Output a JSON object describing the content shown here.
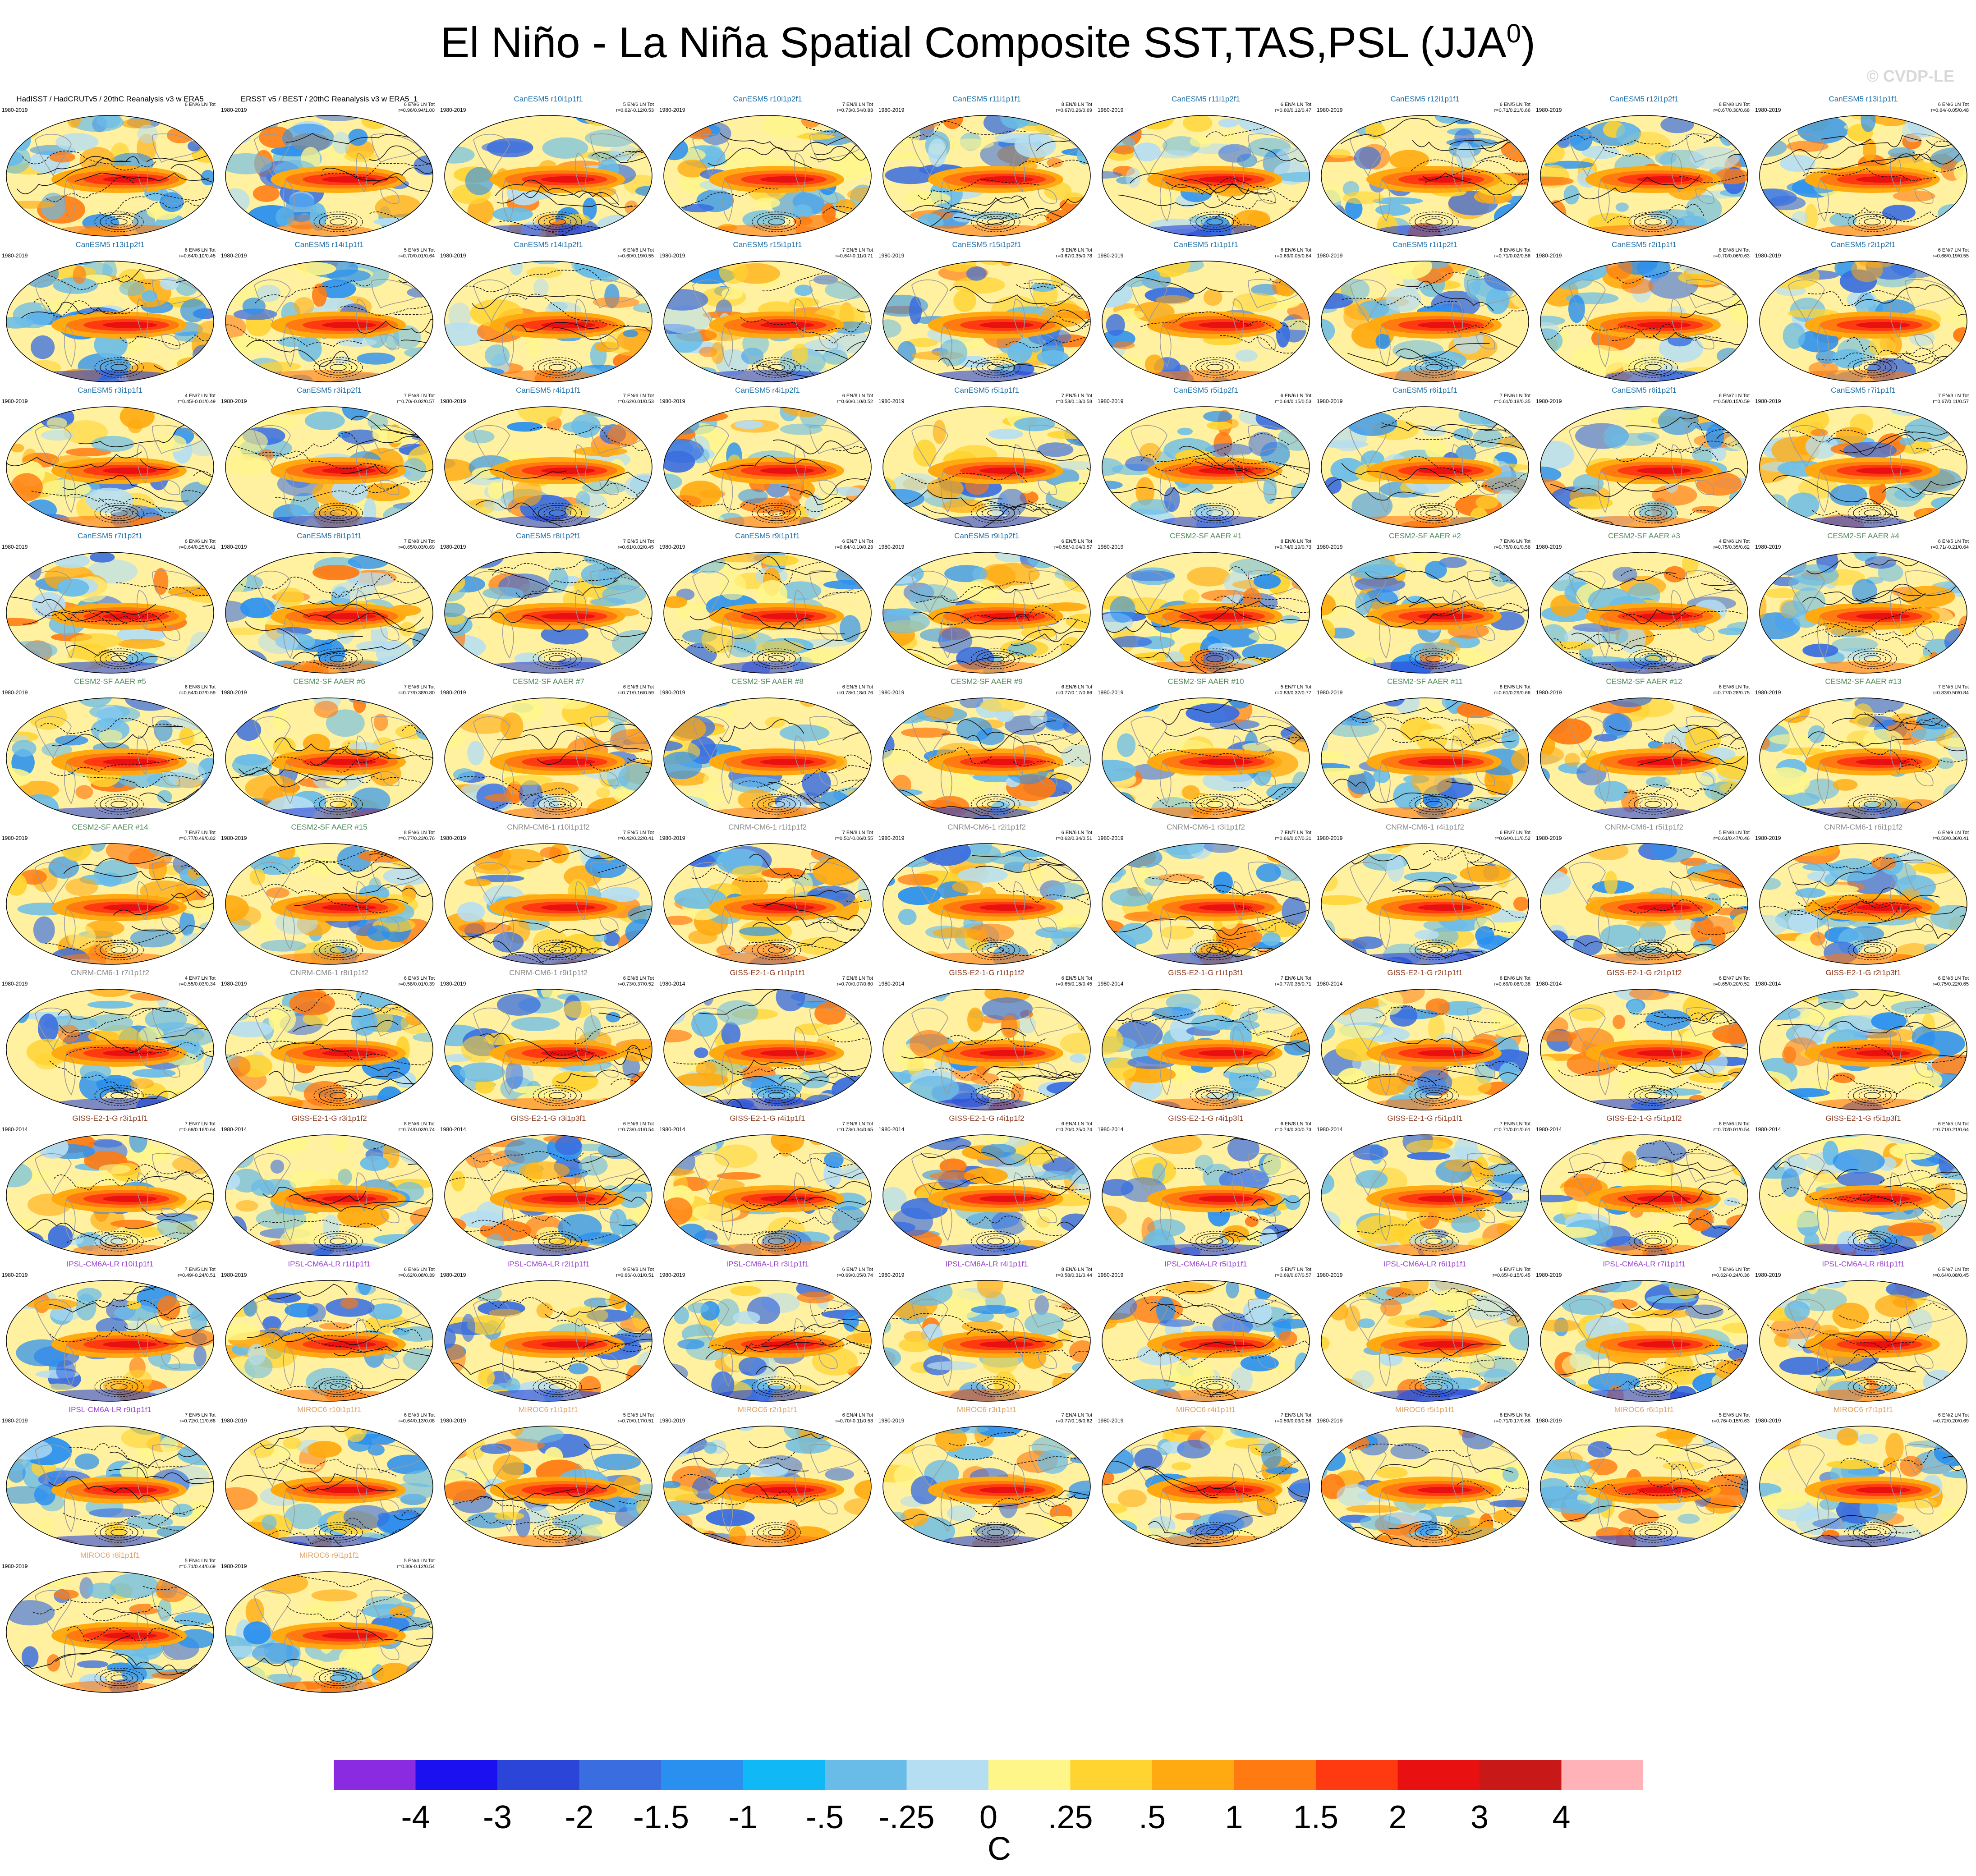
{
  "title_main": "El Niño - La Niña Spatial Composite SST,TAS,PSL (JJA",
  "title_sup": "0",
  "title_end": ")",
  "watermark": "© CVDP-LE",
  "colors": {
    "ocean_warm": "#ff5a1a",
    "neutral": "#fff38a",
    "cool": "#5ab0f0",
    "coast": "#9a9a9a",
    "contour": "#111111"
  },
  "panels": [
    {
      "title": "HadISST / HadCRUTv5 / 20thC Reanalysis v3 w ERA5",
      "title_color": "#000000",
      "period": "1980-2019",
      "stat1": "6 EN/6 LN Tot",
      "stat2": ""
    },
    {
      "title": "ERSST v5 / BEST / 20thC Reanalysis v3 w ERA5_1",
      "title_color": "#000000",
      "period": "1980-2019",
      "stat1": "6 EN/6 LN Tot",
      "stat2": "r=0.96/0.94/1.00"
    },
    {
      "title": "CanESM5 r10i1p1f1",
      "title_color": "#1f6fa8",
      "period": "1980-2019",
      "stat1": "5 EN/6 LN Tot",
      "stat2": "r=0.62/-0.12/0.53"
    },
    {
      "title": "CanESM5 r10i1p2f1",
      "title_color": "#1f6fa8",
      "period": "1980-2019",
      "stat1": "7 EN/8 LN Tot",
      "stat2": "r=0.73/0.54/0.83"
    },
    {
      "title": "CanESM5 r11i1p1f1",
      "title_color": "#1f6fa8",
      "period": "1980-2019",
      "stat1": "8 EN/8 LN Tot",
      "stat2": "r=0.67/0.26/0.69"
    },
    {
      "title": "CanESM5 r11i1p2f1",
      "title_color": "#1f6fa8",
      "period": "1980-2019",
      "stat1": "6 EN/4 LN Tot",
      "stat2": "r=0.60/0.12/0.47"
    },
    {
      "title": "CanESM5 r12i1p1f1",
      "title_color": "#1f6fa8",
      "period": "1980-2019",
      "stat1": "6 EN/5 LN Tot",
      "stat2": "r=0.71/0.21/0.66"
    },
    {
      "title": "CanESM5 r12i1p2f1",
      "title_color": "#1f6fa8",
      "period": "1980-2019",
      "stat1": "8 EN/8 LN Tot",
      "stat2": "r=0.67/0.30/0.68"
    },
    {
      "title": "CanESM5 r13i1p1f1",
      "title_color": "#1f6fa8",
      "period": "1980-2019",
      "stat1": "6 EN/6 LN Tot",
      "stat2": "r=0.64/-0.05/0.48"
    },
    {
      "title": "CanESM5 r13i1p2f1",
      "title_color": "#1f6fa8",
      "period": "1980-2019",
      "stat1": "6 EN/6 LN Tot",
      "stat2": "r=0.64/0.10/0.45"
    },
    {
      "title": "CanESM5 r14i1p1f1",
      "title_color": "#1f6fa8",
      "period": "1980-2019",
      "stat1": "5 EN/5 LN Tot",
      "stat2": "r=0.70/0.01/0.64"
    },
    {
      "title": "CanESM5 r14i1p2f1",
      "title_color": "#1f6fa8",
      "period": "1980-2019",
      "stat1": "6 EN/6 LN Tot",
      "stat2": "r=0.60/0.19/0.55"
    },
    {
      "title": "CanESM5 r15i1p1f1",
      "title_color": "#1f6fa8",
      "period": "1980-2019",
      "stat1": "7 EN/5 LN Tot",
      "stat2": "r=0.64/-0.11/0.71"
    },
    {
      "title": "CanESM5 r15i1p2f1",
      "title_color": "#1f6fa8",
      "period": "1980-2019",
      "stat1": "5 EN/6 LN Tot",
      "stat2": "r=0.67/0.35/0.78"
    },
    {
      "title": "CanESM5 r1i1p1f1",
      "title_color": "#1f6fa8",
      "period": "1980-2019",
      "stat1": "6 EN/6 LN Tot",
      "stat2": "r=0.69/0.05/0.64"
    },
    {
      "title": "CanESM5 r1i1p2f1",
      "title_color": "#1f6fa8",
      "period": "1980-2019",
      "stat1": "6 EN/6 LN Tot",
      "stat2": "r=0.71/0.02/0.56"
    },
    {
      "title": "CanESM5 r2i1p1f1",
      "title_color": "#1f6fa8",
      "period": "1980-2019",
      "stat1": "8 EN/8 LN Tot",
      "stat2": "r=0.70/0.06/0.63"
    },
    {
      "title": "CanESM5 r2i1p2f1",
      "title_color": "#1f6fa8",
      "period": "1980-2019",
      "stat1": "6 EN/7 LN Tot",
      "stat2": "r=0.66/0.19/0.55"
    },
    {
      "title": "CanESM5 r3i1p1f1",
      "title_color": "#1f6fa8",
      "period": "1980-2019",
      "stat1": "4 EN/7 LN Tot",
      "stat2": "r=0.45/-0.01/0.49"
    },
    {
      "title": "CanESM5 r3i1p2f1",
      "title_color": "#1f6fa8",
      "period": "1980-2019",
      "stat1": "7 EN/8 LN Tot",
      "stat2": "r=0.70/-0.02/0.57"
    },
    {
      "title": "CanESM5 r4i1p1f1",
      "title_color": "#1f6fa8",
      "period": "1980-2019",
      "stat1": "7 EN/6 LN Tot",
      "stat2": "r=0.62/0.01/0.53"
    },
    {
      "title": "CanESM5 r4i1p2f1",
      "title_color": "#1f6fa8",
      "period": "1980-2019",
      "stat1": "6 EN/8 LN Tot",
      "stat2": "r=0.60/0.10/0.52"
    },
    {
      "title": "CanESM5 r5i1p1f1",
      "title_color": "#1f6fa8",
      "period": "1980-2019",
      "stat1": "7 EN/5 LN Tot",
      "stat2": "r=0.53/0.13/0.58"
    },
    {
      "title": "CanESM5 r5i1p2f1",
      "title_color": "#1f6fa8",
      "period": "1980-2019",
      "stat1": "6 EN/6 LN Tot",
      "stat2": "r=0.64/0.15/0.53"
    },
    {
      "title": "CanESM5 r6i1p1f1",
      "title_color": "#1f6fa8",
      "period": "1980-2019",
      "stat1": "7 EN/6 LN Tot",
      "stat2": "r=0.61/0.18/0.35"
    },
    {
      "title": "CanESM5 r6i1p2f1",
      "title_color": "#1f6fa8",
      "period": "1980-2019",
      "stat1": "6 EN/7 LN Tot",
      "stat2": "r=0.58/0.15/0.59"
    },
    {
      "title": "CanESM5 r7i1p1f1",
      "title_color": "#1f6fa8",
      "period": "1980-2019",
      "stat1": "7 EN/3 LN Tot",
      "stat2": "r=0.67/0.11/0.57"
    },
    {
      "title": "CanESM5 r7i1p2f1",
      "title_color": "#1f6fa8",
      "period": "1980-2019",
      "stat1": "6 EN/6 LN Tot",
      "stat2": "r=0.64/0.25/0.41"
    },
    {
      "title": "CanESM5 r8i1p1f1",
      "title_color": "#1f6fa8",
      "period": "1980-2019",
      "stat1": "7 EN/8 LN Tot",
      "stat2": "r=0.65/0.03/0.69"
    },
    {
      "title": "CanESM5 r8i1p2f1",
      "title_color": "#1f6fa8",
      "period": "1980-2019",
      "stat1": "7 EN/5 LN Tot",
      "stat2": "r=0.61/0.02/0.45"
    },
    {
      "title": "CanESM5 r9i1p1f1",
      "title_color": "#1f6fa8",
      "period": "1980-2019",
      "stat1": "6 EN/7 LN Tot",
      "stat2": "r=0.64/-0.10/0.23"
    },
    {
      "title": "CanESM5 r9i1p2f1",
      "title_color": "#1f6fa8",
      "period": "1980-2019",
      "stat1": "6 EN/5 LN Tot",
      "stat2": "r=0.56/-0.04/0.57"
    },
    {
      "title": "CESM2-SF AAER #1",
      "title_color": "#4f8a57",
      "period": "1980-2019",
      "stat1": "8 EN/6 LN Tot",
      "stat2": "r=0.74/0.19/0.73"
    },
    {
      "title": "CESM2-SF AAER #2",
      "title_color": "#4f8a57",
      "period": "1980-2019",
      "stat1": "7 EN/6 LN Tot",
      "stat2": "r=0.75/0.01/0.58"
    },
    {
      "title": "CESM2-SF AAER #3",
      "title_color": "#4f8a57",
      "period": "1980-2019",
      "stat1": "4 EN/6 LN Tot",
      "stat2": "r=0.75/0.35/0.62"
    },
    {
      "title": "CESM2-SF AAER #4",
      "title_color": "#4f8a57",
      "period": "1980-2019",
      "stat1": "6 EN/5 LN Tot",
      "stat2": "r=0.71/-0.21/0.64"
    },
    {
      "title": "CESM2-SF AAER #5",
      "title_color": "#4f8a57",
      "period": "1980-2019",
      "stat1": "6 EN/8 LN Tot",
      "stat2": "r=0.64/0.07/0.59"
    },
    {
      "title": "CESM2-SF AAER #6",
      "title_color": "#4f8a57",
      "period": "1980-2019",
      "stat1": "7 EN/6 LN Tot",
      "stat2": "r=0.77/0.38/0.80"
    },
    {
      "title": "CESM2-SF AAER #7",
      "title_color": "#4f8a57",
      "period": "1980-2019",
      "stat1": "6 EN/6 LN Tot",
      "stat2": "r=0.71/0.16/0.59"
    },
    {
      "title": "CESM2-SF AAER #8",
      "title_color": "#4f8a57",
      "period": "1980-2019",
      "stat1": "6 EN/5 LN Tot",
      "stat2": "r=0.78/0.18/0.76"
    },
    {
      "title": "CESM2-SF AAER #9",
      "title_color": "#4f8a57",
      "period": "1980-2019",
      "stat1": "6 EN/6 LN Tot",
      "stat2": "r=0.77/0.17/0.66"
    },
    {
      "title": "CESM2-SF AAER #10",
      "title_color": "#4f8a57",
      "period": "1980-2019",
      "stat1": "5 EN/7 LN Tot",
      "stat2": "r=0.83/0.32/0.77"
    },
    {
      "title": "CESM2-SF AAER #11",
      "title_color": "#4f8a57",
      "period": "1980-2019",
      "stat1": "8 EN/5 LN Tot",
      "stat2": "r=0.61/0.29/0.66"
    },
    {
      "title": "CESM2-SF AAER #12",
      "title_color": "#4f8a57",
      "period": "1980-2019",
      "stat1": "6 EN/6 LN Tot",
      "stat2": "r=0.77/0.28/0.75"
    },
    {
      "title": "CESM2-SF AAER #13",
      "title_color": "#4f8a57",
      "period": "1980-2019",
      "stat1": "7 EN/5 LN Tot",
      "stat2": "r=0.83/0.50/0.84"
    },
    {
      "title": "CESM2-SF AAER #14",
      "title_color": "#4f8a57",
      "period": "1980-2019",
      "stat1": "7 EN/7 LN Tot",
      "stat2": "r=0.77/0.49/0.82"
    },
    {
      "title": "CESM2-SF AAER #15",
      "title_color": "#4f8a57",
      "period": "1980-2019",
      "stat1": "8 EN/6 LN Tot",
      "stat2": "r=0.77/0.23/0.76"
    },
    {
      "title": "CNRM-CM6-1 r10i1p1f2",
      "title_color": "#8a8a8a",
      "period": "1980-2019",
      "stat1": "7 EN/5 LN Tot",
      "stat2": "r=0.42/0.22/0.41"
    },
    {
      "title": "CNRM-CM6-1 r1i1p1f2",
      "title_color": "#8a8a8a",
      "period": "1980-2019",
      "stat1": "7 EN/8 LN Tot",
      "stat2": "r=0.50/-0.06/0.55"
    },
    {
      "title": "CNRM-CM6-1 r2i1p1f2",
      "title_color": "#8a8a8a",
      "period": "1980-2019",
      "stat1": "6 EN/6 LN Tot",
      "stat2": "r=0.62/0.34/0.51"
    },
    {
      "title": "CNRM-CM6-1 r3i1p1f2",
      "title_color": "#8a8a8a",
      "period": "1980-2019",
      "stat1": "7 EN/7 LN Tot",
      "stat2": "r=0.66/0.07/0.31"
    },
    {
      "title": "CNRM-CM6-1 r4i1p1f2",
      "title_color": "#8a8a8a",
      "period": "1980-2019",
      "stat1": "6 EN/7 LN Tot",
      "stat2": "r=0.64/0.11/0.52"
    },
    {
      "title": "CNRM-CM6-1 r5i1p1f2",
      "title_color": "#8a8a8a",
      "period": "1980-2019",
      "stat1": "5 EN/8 LN Tot",
      "stat2": "r=0.61/0.47/0.46"
    },
    {
      "title": "CNRM-CM6-1 r6i1p1f2",
      "title_color": "#8a8a8a",
      "period": "1980-2019",
      "stat1": "6 EN/9 LN Tot",
      "stat2": "r=0.50/0.36/0.41"
    },
    {
      "title": "CNRM-CM6-1 r7i1p1f2",
      "title_color": "#8a8a8a",
      "period": "1980-2019",
      "stat1": "4 EN/7 LN Tot",
      "stat2": "r=0.55/0.03/0.34"
    },
    {
      "title": "CNRM-CM6-1 r8i1p1f2",
      "title_color": "#8a8a8a",
      "period": "1980-2019",
      "stat1": "6 EN/5 LN Tot",
      "stat2": "r=0.58/0.01/0.39"
    },
    {
      "title": "CNRM-CM6-1 r9i1p1f2",
      "title_color": "#8a8a8a",
      "period": "1980-2019",
      "stat1": "6 EN/8 LN Tot",
      "stat2": "r=0.73/0.37/0.52"
    },
    {
      "title": "GISS-E2-1-G r1i1p1f1",
      "title_color": "#8a3a1f",
      "period": "1980-2014",
      "stat1": "7 EN/6 LN Tot",
      "stat2": "r=0.70/0.07/0.60"
    },
    {
      "title": "GISS-E2-1-G r1i1p1f2",
      "title_color": "#8a3a1f",
      "period": "1980-2014",
      "stat1": "6 EN/5 LN Tot",
      "stat2": "r=0.65/0.18/0.45"
    },
    {
      "title": "GISS-E2-1-G r1i1p3f1",
      "title_color": "#8a3a1f",
      "period": "1980-2014",
      "stat1": "7 EN/6 LN Tot",
      "stat2": "r=0.77/0.35/0.71"
    },
    {
      "title": "GISS-E2-1-G r2i1p1f1",
      "title_color": "#8a3a1f",
      "period": "1980-2014",
      "stat1": "6 EN/6 LN Tot",
      "stat2": "r=0.69/0.08/0.38"
    },
    {
      "title": "GISS-E2-1-G r2i1p1f2",
      "title_color": "#8a3a1f",
      "period": "1980-2014",
      "stat1": "6 EN/7 LN Tot",
      "stat2": "r=0.65/0.20/0.52"
    },
    {
      "title": "GISS-E2-1-G r2i1p3f1",
      "title_color": "#8a3a1f",
      "period": "1980-2014",
      "stat1": "6 EN/6 LN Tot",
      "stat2": "r=0.75/0.22/0.65"
    },
    {
      "title": "GISS-E2-1-G r3i1p1f1",
      "title_color": "#8a3a1f",
      "period": "1980-2014",
      "stat1": "7 EN/7 LN Tot",
      "stat2": "r=0.69/0.16/0.64"
    },
    {
      "title": "GISS-E2-1-G r3i1p1f2",
      "title_color": "#8a3a1f",
      "period": "1980-2014",
      "stat1": "8 EN/6 LN Tot",
      "stat2": "r=0.74/0.03/0.74"
    },
    {
      "title": "GISS-E2-1-G r3i1p3f1",
      "title_color": "#8a3a1f",
      "period": "1980-2014",
      "stat1": "6 EN/6 LN Tot",
      "stat2": "r=0.73/0.41/0.54"
    },
    {
      "title": "GISS-E2-1-G r4i1p1f1",
      "title_color": "#8a3a1f",
      "period": "1980-2014",
      "stat1": "7 EN/6 LN Tot",
      "stat2": "r=0.73/0.34/0.65"
    },
    {
      "title": "GISS-E2-1-G r4i1p1f2",
      "title_color": "#8a3a1f",
      "period": "1980-2014",
      "stat1": "6 EN/4 LN Tot",
      "stat2": "r=0.70/0.25/0.74"
    },
    {
      "title": "GISS-E2-1-G r4i1p3f1",
      "title_color": "#8a3a1f",
      "period": "1980-2014",
      "stat1": "6 EN/8 LN Tot",
      "stat2": "r=0.74/0.30/0.73"
    },
    {
      "title": "GISS-E2-1-G r5i1p1f1",
      "title_color": "#8a3a1f",
      "period": "1980-2014",
      "stat1": "7 EN/5 LN Tot",
      "stat2": "r=0.71/0.01/0.61"
    },
    {
      "title": "GISS-E2-1-G r5i1p1f2",
      "title_color": "#8a3a1f",
      "period": "1980-2014",
      "stat1": "6 EN/6 LN Tot",
      "stat2": "r=0.70/0.01/0.54"
    },
    {
      "title": "GISS-E2-1-G r5i1p3f1",
      "title_color": "#8a3a1f",
      "period": "1980-2014",
      "stat1": "6 EN/5 LN Tot",
      "stat2": "r=0.71/0.21/0.64"
    },
    {
      "title": "IPSL-CM6A-LR r10i1p1f1",
      "title_color": "#9a3fd0",
      "period": "1980-2019",
      "stat1": "7 EN/5 LN Tot",
      "stat2": "r=0.49/-0.24/0.51"
    },
    {
      "title": "IPSL-CM6A-LR r1i1p1f1",
      "title_color": "#9a3fd0",
      "period": "1980-2019",
      "stat1": "6 EN/6 LN Tot",
      "stat2": "r=0.62/0.08/0.39"
    },
    {
      "title": "IPSL-CM6A-LR r2i1p1f1",
      "title_color": "#9a3fd0",
      "period": "1980-2019",
      "stat1": "9 EN/8 LN Tot",
      "stat2": "r=0.66/-0.01/0.51"
    },
    {
      "title": "IPSL-CM6A-LR r3i1p1f1",
      "title_color": "#9a3fd0",
      "period": "1980-2019",
      "stat1": "6 EN/7 LN Tot",
      "stat2": "r=0.69/0.05/0.74"
    },
    {
      "title": "IPSL-CM6A-LR r4i1p1f1",
      "title_color": "#9a3fd0",
      "period": "1980-2019",
      "stat1": "8 EN/6 LN Tot",
      "stat2": "r=0.58/0.31/0.44"
    },
    {
      "title": "IPSL-CM6A-LR r5i1p1f1",
      "title_color": "#9a3fd0",
      "period": "1980-2019",
      "stat1": "5 EN/7 LN Tot",
      "stat2": "r=0.69/0.07/0.57"
    },
    {
      "title": "IPSL-CM6A-LR r6i1p1f1",
      "title_color": "#9a3fd0",
      "period": "1980-2019",
      "stat1": "6 EN/7 LN Tot",
      "stat2": "r=0.65/-0.15/0.45"
    },
    {
      "title": "IPSL-CM6A-LR r7i1p1f1",
      "title_color": "#9a3fd0",
      "period": "1980-2019",
      "stat1": "7 EN/6 LN Tot",
      "stat2": "r=0.62/-0.24/0.36"
    },
    {
      "title": "IPSL-CM6A-LR r8i1p1f1",
      "title_color": "#9a3fd0",
      "period": "1980-2019",
      "stat1": "6 EN/7 LN Tot",
      "stat2": "r=0.64/0.08/0.45"
    },
    {
      "title": "IPSL-CM6A-LR r9i1p1f1",
      "title_color": "#9a3fd0",
      "period": "1980-2019",
      "stat1": "7 EN/5 LN Tot",
      "stat2": "r=0.72/0.11/0.68"
    },
    {
      "title": "MIROC6 r10i1p1f1",
      "title_color": "#e0a060",
      "period": "1980-2019",
      "stat1": "6 EN/3 LN Tot",
      "stat2": "r=0.64/0.13/0.08"
    },
    {
      "title": "MIROC6 r1i1p1f1",
      "title_color": "#e0a060",
      "period": "1980-2019",
      "stat1": "5 EN/5 LN Tot",
      "stat2": "r=0.70/0.17/0.51"
    },
    {
      "title": "MIROC6 r2i1p1f1",
      "title_color": "#e0a060",
      "period": "1980-2019",
      "stat1": "6 EN/4 LN Tot",
      "stat2": "r=0.70/-0.11/0.53"
    },
    {
      "title": "MIROC6 r3i1p1f1",
      "title_color": "#e0a060",
      "period": "1980-2019",
      "stat1": "7 EN/4 LN Tot",
      "stat2": "r=0.77/0.16/0.62"
    },
    {
      "title": "MIROC6 r4i1p1f1",
      "title_color": "#e0a060",
      "period": "1980-2019",
      "stat1": "7 EN/3 LN Tot",
      "stat2": "r=0.59/0.03/0.56"
    },
    {
      "title": "MIROC6 r5i1p1f1",
      "title_color": "#e0a060",
      "period": "1980-2019",
      "stat1": "6 EN/5 LN Tot",
      "stat2": "r=0.71/0.17/0.68"
    },
    {
      "title": "MIROC6 r6i1p1f1",
      "title_color": "#e0a060",
      "period": "1980-2019",
      "stat1": "5 EN/5 LN Tot",
      "stat2": "r=0.76/-0.15/0.63"
    },
    {
      "title": "MIROC6 r7i1p1f1",
      "title_color": "#e0a060",
      "period": "1980-2019",
      "stat1": "6 EN/2 LN Tot",
      "stat2": "r=0.72/0.20/0.69"
    },
    {
      "title": "MIROC6 r8i1p1f1",
      "title_color": "#e0a060",
      "period": "1980-2019",
      "stat1": "5 EN/4 LN Tot",
      "stat2": "r=0.71/0.44/0.69"
    },
    {
      "title": "MIROC6 r9i1p1f1",
      "title_color": "#e0a060",
      "period": "1980-2019",
      "stat1": "5 EN/4 LN Tot",
      "stat2": "r=0.80/-0.12/0.54"
    }
  ],
  "colorbar": {
    "colors": [
      "#8a2be2",
      "#1a10f0",
      "#2a45d8",
      "#3a6ee0",
      "#2a90f0",
      "#10b8f5",
      "#6abce8",
      "#b6def2",
      "#fff68a",
      "#ffd330",
      "#ffaa10",
      "#ff7a10",
      "#ff3a10",
      "#e81010",
      "#c81818",
      "#ffb2b8"
    ],
    "labels": [
      "-4",
      "-3",
      "-2",
      "-1.5",
      "-1",
      "-.5",
      "-.25",
      "0",
      ".25",
      ".5",
      "1",
      "1.5",
      "2",
      "3",
      "4"
    ],
    "unit": "C"
  }
}
